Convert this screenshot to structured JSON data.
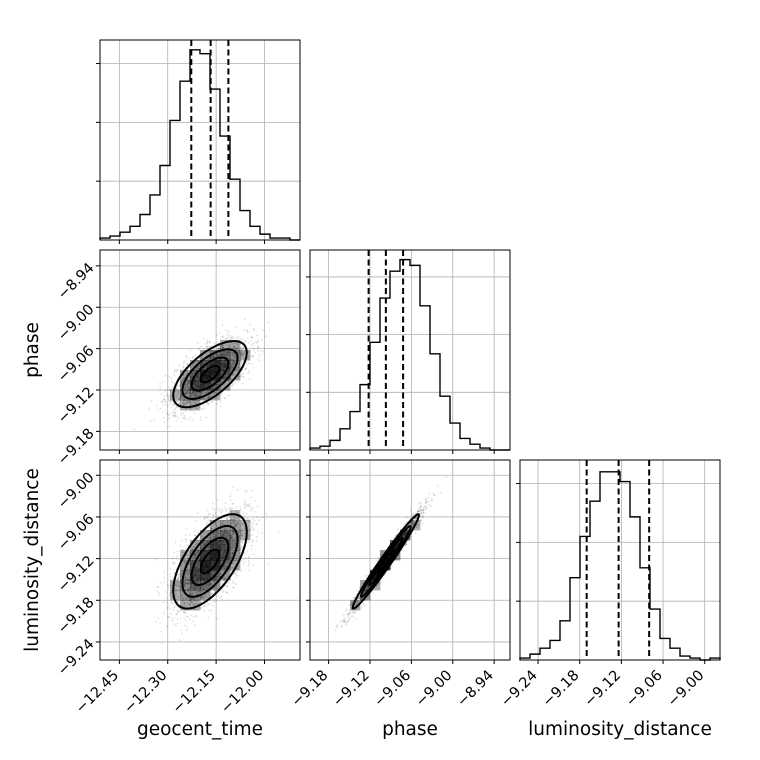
{
  "chart_data": {
    "type": "corner",
    "parameters": [
      "geocent_time",
      "phase",
      "luminosity_distance"
    ],
    "axis_labels": {
      "geocent_time": "geocent_time",
      "phase": "phase",
      "luminosity_distance": "luminosity_distance"
    },
    "ranges": {
      "geocent_time": [
        -12.51,
        -11.89
      ],
      "phase": [
        -9.207,
        -8.917
      ],
      "luminosity_distance": [
        -9.266,
        -8.978
      ]
    },
    "ticks": {
      "geocent_time": [
        -12.45,
        -12.3,
        -12.15,
        -12.0
      ],
      "phase": [
        -9.18,
        -9.12,
        -9.06,
        -9.0,
        -8.94
      ],
      "luminosity_distance": [
        -9.24,
        -9.18,
        -9.12,
        -9.06,
        -9.0
      ]
    },
    "tick_labels": {
      "geocent_time": [
        "−12.45",
        "−12.30",
        "−12.15",
        "−12.00"
      ],
      "phase": [
        "−9.18",
        "−9.12",
        "−9.06",
        "−9.00",
        "−8.94"
      ],
      "luminosity_distance": [
        "−9.24",
        "−9.18",
        "−9.12",
        "−9.06",
        "−9.00"
      ]
    },
    "histograms": {
      "geocent_time": {
        "bins": 20,
        "counts": [
          1,
          2,
          4,
          7,
          13,
          23,
          38,
          61,
          81,
          97,
          95,
          77,
          53,
          31,
          15,
          7,
          3,
          1,
          1,
          0
        ],
        "ylim": [
          0,
          102
        ],
        "quantiles": [
          -12.227,
          -12.167,
          -12.112
        ]
      },
      "phase": {
        "bins": 20,
        "counts": [
          1,
          2,
          5,
          11,
          20,
          34,
          56,
          79,
          93,
          99,
          96,
          75,
          50,
          28,
          14,
          6,
          3,
          1,
          0,
          0
        ],
        "ylim": [
          0,
          104
        ],
        "quantiles": [
          -9.122,
          -9.097,
          -9.072
        ]
      },
      "luminosity_distance": {
        "bins": 20,
        "counts": [
          1,
          3,
          6,
          10,
          20,
          42,
          63,
          81,
          96,
          96,
          91,
          73,
          47,
          26,
          11,
          6,
          2,
          1,
          0,
          1
        ],
        "ylim": [
          0,
          102
        ],
        "quantiles": [
          -9.17,
          -9.124,
          -9.08
        ]
      }
    },
    "pairs": [
      {
        "x": "geocent_time",
        "y": "phase",
        "mean": [
          -12.169,
          -9.097
        ],
        "sd": [
          0.057,
          0.024
        ],
        "corr": 0.65
      },
      {
        "x": "geocent_time",
        "y": "luminosity_distance",
        "mean": [
          -12.169,
          -9.124
        ],
        "sd": [
          0.057,
          0.034
        ],
        "corr": 0.62
      },
      {
        "x": "phase",
        "y": "luminosity_distance",
        "mean": [
          -9.097,
          -9.124
        ],
        "sd": [
          0.024,
          0.034
        ],
        "corr": 0.98
      }
    ],
    "contour_levels_sigma": [
      0.5,
      1.0,
      1.5,
      2.0
    ],
    "grid": true,
    "colors": {
      "line": "#000000",
      "grid": "#b0b0b0",
      "points": "#000000"
    }
  }
}
